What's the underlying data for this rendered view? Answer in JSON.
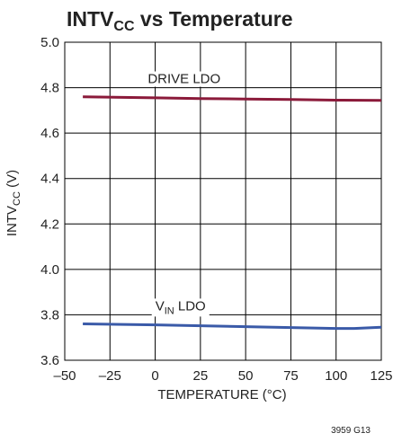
{
  "chart_data": {
    "type": "line",
    "title": {
      "main": "INTV",
      "sub": "CC",
      "rest": " vs Temperature"
    },
    "ylabel": {
      "main": "INTV",
      "sub": "CC",
      "rest": " (V)"
    },
    "xlabel": "TEMPERATURE (°C)",
    "xlim": [
      -50,
      125
    ],
    "ylim": [
      3.6,
      5.0
    ],
    "x_ticks": [
      -50,
      -25,
      0,
      25,
      50,
      75,
      100,
      125
    ],
    "x_tick_labels": [
      "–50",
      "–25",
      "0",
      "25",
      "50",
      "75",
      "100",
      "125"
    ],
    "y_ticks": [
      3.6,
      3.8,
      4.0,
      4.2,
      4.4,
      4.6,
      4.8,
      5.0
    ],
    "y_tick_labels": [
      "3.6",
      "3.8",
      "4.0",
      "4.2",
      "4.4",
      "4.6",
      "4.8",
      "5.0"
    ],
    "grid": true,
    "series": [
      {
        "name": "DRIVE LDO",
        "name_parts": {
          "main": "DRIVE LDO",
          "sub": "",
          "rest": ""
        },
        "color": "#8b1a3a",
        "label_at": {
          "x": 16,
          "y": 4.82
        },
        "points": [
          {
            "x": -40,
            "y": 4.76
          },
          {
            "x": 0,
            "y": 4.755
          },
          {
            "x": 25,
            "y": 4.752
          },
          {
            "x": 50,
            "y": 4.75
          },
          {
            "x": 75,
            "y": 4.748
          },
          {
            "x": 100,
            "y": 4.745
          },
          {
            "x": 125,
            "y": 4.744
          }
        ]
      },
      {
        "name": "VIN LDO",
        "name_parts": {
          "main": "V",
          "sub": "IN",
          "rest": " LDO"
        },
        "color": "#3a5aa8",
        "label_at": {
          "x": 14,
          "y": 3.82
        },
        "points": [
          {
            "x": -40,
            "y": 3.76
          },
          {
            "x": 0,
            "y": 3.756
          },
          {
            "x": 25,
            "y": 3.752
          },
          {
            "x": 50,
            "y": 3.748
          },
          {
            "x": 75,
            "y": 3.744
          },
          {
            "x": 100,
            "y": 3.74
          },
          {
            "x": 110,
            "y": 3.74
          },
          {
            "x": 125,
            "y": 3.745
          }
        ]
      }
    ],
    "footnote": "3959 G13"
  }
}
